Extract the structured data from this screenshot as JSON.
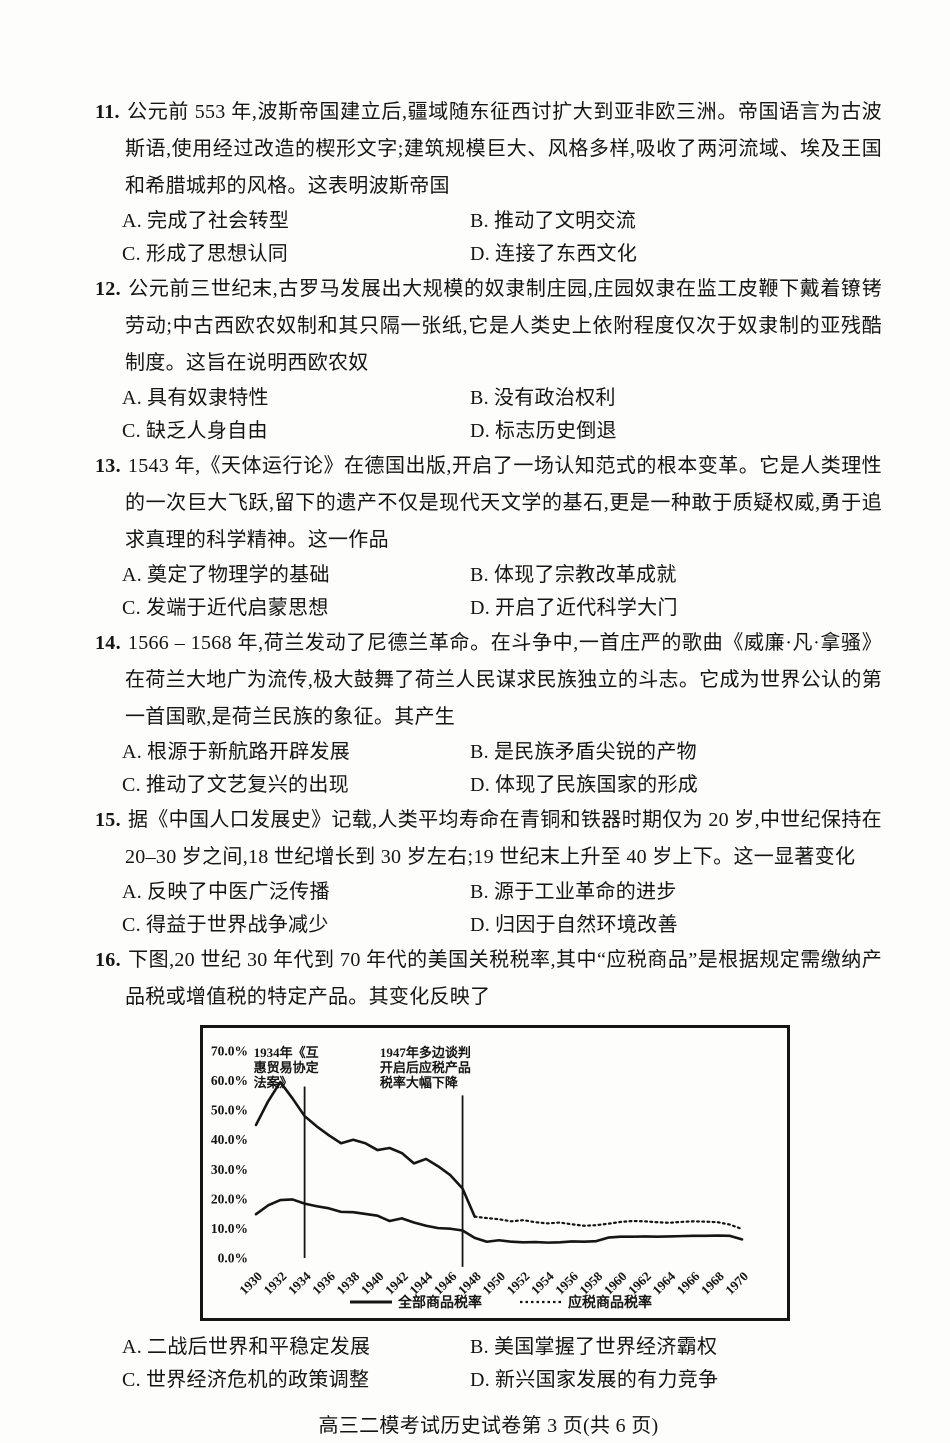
{
  "page": {
    "footer": "高三二模考试历史试卷第 3 页(共 6 页)"
  },
  "questions": [
    {
      "number": "11.",
      "stem": "公元前 553 年,波斯帝国建立后,疆域随东征西讨扩大到亚非欧三洲。帝国语言为古波斯语,使用经过改造的楔形文字;建筑规模巨大、风格多样,吸收了两河流域、埃及王国和希腊城邦的风格。这表明波斯帝国",
      "options": [
        {
          "label": "A.",
          "text": "完成了社会转型"
        },
        {
          "label": "B.",
          "text": "推动了文明交流"
        },
        {
          "label": "C.",
          "text": "形成了思想认同"
        },
        {
          "label": "D.",
          "text": "连接了东西文化"
        }
      ]
    },
    {
      "number": "12.",
      "stem": "公元前三世纪末,古罗马发展出大规模的奴隶制庄园,庄园奴隶在监工皮鞭下戴着镣铐劳动;中古西欧农奴制和其只隔一张纸,它是人类史上依附程度仅次于奴隶制的亚残酷制度。这旨在说明西欧农奴",
      "options": [
        {
          "label": "A.",
          "text": "具有奴隶特性"
        },
        {
          "label": "B.",
          "text": "没有政治权利"
        },
        {
          "label": "C.",
          "text": "缺乏人身自由"
        },
        {
          "label": "D.",
          "text": "标志历史倒退"
        }
      ]
    },
    {
      "number": "13.",
      "stem": "1543 年,《天体运行论》在德国出版,开启了一场认知范式的根本变革。它是人类理性的一次巨大飞跃,留下的遗产不仅是现代天文学的基石,更是一种敢于质疑权威,勇于追求真理的科学精神。这一作品",
      "options": [
        {
          "label": "A.",
          "text": "奠定了物理学的基础"
        },
        {
          "label": "B.",
          "text": "体现了宗教改革成就"
        },
        {
          "label": "C.",
          "text": "发端于近代启蒙思想"
        },
        {
          "label": "D.",
          "text": "开启了近代科学大门"
        }
      ]
    },
    {
      "number": "14.",
      "stem": "1566 – 1568 年,荷兰发动了尼德兰革命。在斗争中,一首庄严的歌曲《威廉·凡·拿骚》在荷兰大地广为流传,极大鼓舞了荷兰人民谋求民族独立的斗志。它成为世界公认的第一首国歌,是荷兰民族的象征。其产生",
      "options": [
        {
          "label": "A.",
          "text": "根源于新航路开辟发展"
        },
        {
          "label": "B.",
          "text": "是民族矛盾尖锐的产物"
        },
        {
          "label": "C.",
          "text": "推动了文艺复兴的出现"
        },
        {
          "label": "D.",
          "text": "体现了民族国家的形成"
        }
      ]
    },
    {
      "number": "15.",
      "stem": "据《中国人口发展史》记载,人类平均寿命在青铜和铁器时期仅为 20 岁,中世纪保持在 20–30 岁之间,18 世纪增长到 30 岁左右;19 世纪末上升至 40 岁上下。这一显著变化",
      "options": [
        {
          "label": "A.",
          "text": "反映了中医广泛传播"
        },
        {
          "label": "B.",
          "text": "源于工业革命的进步"
        },
        {
          "label": "C.",
          "text": "得益于世界战争减少"
        },
        {
          "label": "D.",
          "text": "归因于自然环境改善"
        }
      ]
    },
    {
      "number": "16.",
      "stem": "下图,20 世纪 30 年代到 70 年代的美国关税税率,其中“应税商品”是根据规定需缴纳产品税或增值税的特定产品。其变化反映了",
      "options": [
        {
          "label": "A.",
          "text": "二战后世界和平稳定发展"
        },
        {
          "label": "B.",
          "text": "美国掌握了世界经济霸权"
        },
        {
          "label": "C.",
          "text": "世界经济危机的政策调整"
        },
        {
          "label": "D.",
          "text": "新兴国家发展的有力竞争"
        }
      ]
    }
  ],
  "chart_data": {
    "type": "line",
    "title": "",
    "xlabel": "",
    "ylabel": "",
    "x_range": [
      1930,
      1970
    ],
    "ylim": [
      0,
      70
    ],
    "grid": false,
    "legend_position": "bottom",
    "x": [
      1930,
      1931,
      1932,
      1933,
      1934,
      1935,
      1936,
      1937,
      1938,
      1939,
      1940,
      1941,
      1942,
      1943,
      1944,
      1945,
      1946,
      1947,
      1948,
      1949,
      1950,
      1951,
      1952,
      1953,
      1954,
      1955,
      1956,
      1957,
      1958,
      1959,
      1960,
      1961,
      1962,
      1963,
      1964,
      1965,
      1966,
      1967,
      1968,
      1969,
      1970
    ],
    "x_ticks": [
      "1930",
      "1932",
      "1934",
      "1936",
      "1938",
      "1940",
      "1942",
      "1944",
      "1946",
      "1948",
      "1950",
      "1952",
      "1954",
      "1956",
      "1958",
      "1960",
      "1962",
      "1964",
      "1966",
      "1968",
      "1970"
    ],
    "y_ticks": [
      {
        "v": 70,
        "label": "70.0%"
      },
      {
        "v": 60,
        "label": "60.0%"
      },
      {
        "v": 50,
        "label": "50.0%"
      },
      {
        "v": 40,
        "label": "40.0%"
      },
      {
        "v": 30,
        "label": "30.0%"
      },
      {
        "v": 20,
        "label": "20.0%"
      },
      {
        "v": 10,
        "label": "10.0%"
      },
      {
        "v": 0,
        "label": "0.0%"
      }
    ],
    "series": [
      {
        "name": "全部商品税率",
        "style": "solid",
        "values": [
          14.8,
          17.8,
          19.6,
          19.8,
          18.4,
          17.5,
          16.8,
          15.6,
          15.5,
          14.9,
          14.3,
          12.5,
          13.4,
          12.0,
          10.9,
          10.1,
          9.9,
          9.3,
          6.8,
          5.5,
          6.0,
          5.5,
          5.3,
          5.4,
          5.2,
          5.3,
          5.6,
          5.5,
          5.7,
          6.9,
          7.2,
          7.2,
          7.3,
          7.2,
          7.3,
          7.4,
          7.5,
          7.5,
          7.6,
          7.5,
          6.3
        ]
      },
      {
        "name": "应税商品税率",
        "style": "dashed",
        "dash_from": 1948,
        "values": [
          45.0,
          53.0,
          59.5,
          54.0,
          48.0,
          44.5,
          41.5,
          38.8,
          40.0,
          38.8,
          36.5,
          37.2,
          35.5,
          32.0,
          33.5,
          31.0,
          28.0,
          23.5,
          14.0,
          13.5,
          13.1,
          12.4,
          12.8,
          12.1,
          11.7,
          12.0,
          11.4,
          10.9,
          11.1,
          11.6,
          12.2,
          12.5,
          12.4,
          12.1,
          11.9,
          12.2,
          12.4,
          12.3,
          12.1,
          11.3,
          9.8
        ]
      }
    ],
    "annotations": [
      {
        "lines": [
          "1934年《互",
          "惠贸易协定",
          "法案》"
        ],
        "text_x": 1929.8,
        "text_y": 68,
        "rule_x": 1934,
        "rule_top": 58,
        "rule_bottom": 0
      },
      {
        "lines": [
          "1947年多边谈判",
          "开启后应税产品",
          "税率大幅下降"
        ],
        "text_x": 1940.2,
        "text_y": 68,
        "rule_x": 1947,
        "rule_top": 55,
        "rule_bottom": -3
      }
    ],
    "legend": [
      {
        "label": "全部商品税率",
        "style": "solid"
      },
      {
        "label": "应税商品税率",
        "style": "dashed"
      }
    ],
    "ink_color": "#151515"
  }
}
